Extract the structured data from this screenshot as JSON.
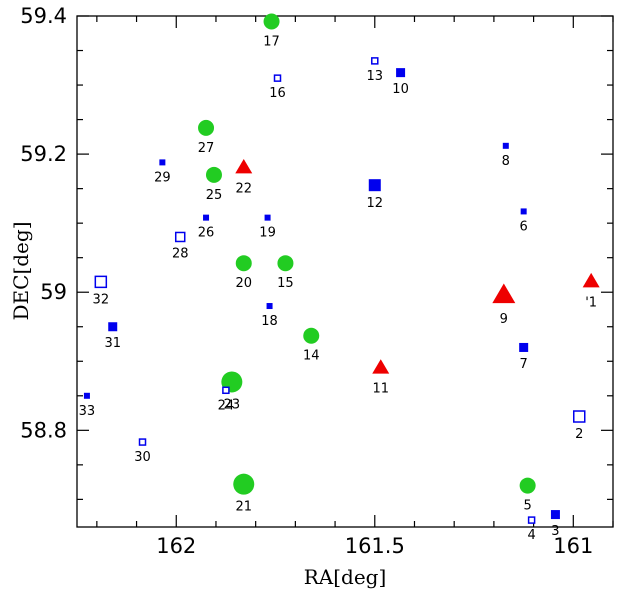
{
  "chart_data": {
    "type": "scatter",
    "title": "",
    "xlabel": "RA[deg]",
    "ylabel": "DEC[deg]",
    "xlim": [
      162.25,
      160.9
    ],
    "ylim": [
      58.66,
      59.4
    ],
    "x_reversed": true,
    "grid": false,
    "xticks": [
      {
        "value": 162,
        "label": "162"
      },
      {
        "value": 161.5,
        "label": "161.5"
      },
      {
        "value": 161,
        "label": "161"
      }
    ],
    "yticks": [
      {
        "value": 58.8,
        "label": "58.8"
      },
      {
        "value": 59,
        "label": "59"
      },
      {
        "value": 59.2,
        "label": "59.2"
      },
      {
        "value": 59.4,
        "label": "59.4"
      }
    ],
    "colors": {
      "circle": "#22cc22",
      "square": "#0000ee",
      "triangle": "#ee0000"
    },
    "points": [
      {
        "id": "1",
        "label": "'1",
        "ra": 160.955,
        "dec": 59.015,
        "shape": "triangle",
        "size": "small"
      },
      {
        "id": "2",
        "label": "2",
        "ra": 160.985,
        "dec": 58.82,
        "shape": "open-square",
        "size": "medium"
      },
      {
        "id": "3",
        "label": "3",
        "ra": 161.045,
        "dec": 58.678,
        "shape": "square",
        "size": "small"
      },
      {
        "id": "4",
        "label": "4",
        "ra": 161.105,
        "dec": 58.67,
        "shape": "open-square",
        "size": "tiny"
      },
      {
        "id": "5",
        "label": "5",
        "ra": 161.115,
        "dec": 58.72,
        "shape": "circle",
        "size": "small"
      },
      {
        "id": "6",
        "label": "6",
        "ra": 161.125,
        "dec": 59.117,
        "shape": "square",
        "size": "tiny"
      },
      {
        "id": "7",
        "label": "7",
        "ra": 161.125,
        "dec": 58.92,
        "shape": "square",
        "size": "small"
      },
      {
        "id": "8",
        "label": "8",
        "ra": 161.17,
        "dec": 59.212,
        "shape": "square",
        "size": "tiny"
      },
      {
        "id": "9",
        "label": "9",
        "ra": 161.175,
        "dec": 58.995,
        "shape": "triangle",
        "size": "large"
      },
      {
        "id": "10",
        "label": "10",
        "ra": 161.435,
        "dec": 59.318,
        "shape": "square",
        "size": "small"
      },
      {
        "id": "11",
        "label": "11",
        "ra": 161.485,
        "dec": 58.89,
        "shape": "triangle",
        "size": "small"
      },
      {
        "id": "12",
        "label": "12",
        "ra": 161.5,
        "dec": 59.155,
        "shape": "square",
        "size": "medium"
      },
      {
        "id": "13",
        "label": "13",
        "ra": 161.5,
        "dec": 59.335,
        "shape": "open-square",
        "size": "tiny"
      },
      {
        "id": "14",
        "label": "14",
        "ra": 161.66,
        "dec": 58.937,
        "shape": "circle",
        "size": "small"
      },
      {
        "id": "15",
        "label": "15",
        "ra": 161.725,
        "dec": 59.042,
        "shape": "circle",
        "size": "small"
      },
      {
        "id": "16",
        "label": "16",
        "ra": 161.745,
        "dec": 59.31,
        "shape": "open-square",
        "size": "tiny"
      },
      {
        "id": "17",
        "label": "17",
        "ra": 161.76,
        "dec": 59.392,
        "shape": "circle",
        "size": "small"
      },
      {
        "id": "18",
        "label": "18",
        "ra": 161.765,
        "dec": 58.98,
        "shape": "square",
        "size": "tiny"
      },
      {
        "id": "19",
        "label": "19",
        "ra": 161.77,
        "dec": 59.108,
        "shape": "square",
        "size": "tiny"
      },
      {
        "id": "20",
        "label": "20",
        "ra": 161.83,
        "dec": 59.042,
        "shape": "circle",
        "size": "small"
      },
      {
        "id": "21",
        "label": "21",
        "ra": 161.83,
        "dec": 58.722,
        "shape": "circle",
        "size": "large"
      },
      {
        "id": "22",
        "label": "22",
        "ra": 161.83,
        "dec": 59.18,
        "shape": "triangle",
        "size": "small"
      },
      {
        "id": "23",
        "label": "23",
        "ra": 161.86,
        "dec": 58.87,
        "shape": "circle",
        "size": "large"
      },
      {
        "id": "24",
        "label": "24",
        "ra": 161.875,
        "dec": 58.858,
        "shape": "open-square",
        "size": "tiny"
      },
      {
        "id": "25",
        "label": "25",
        "ra": 161.905,
        "dec": 59.17,
        "shape": "circle",
        "size": "small"
      },
      {
        "id": "26",
        "label": "26",
        "ra": 161.925,
        "dec": 59.108,
        "shape": "square",
        "size": "tiny"
      },
      {
        "id": "27",
        "label": "27",
        "ra": 161.925,
        "dec": 59.238,
        "shape": "circle",
        "size": "small"
      },
      {
        "id": "28",
        "label": "28",
        "ra": 161.99,
        "dec": 59.08,
        "shape": "open-square",
        "size": "small"
      },
      {
        "id": "29",
        "label": "29",
        "ra": 162.035,
        "dec": 59.188,
        "shape": "square",
        "size": "tiny"
      },
      {
        "id": "30",
        "label": "30",
        "ra": 162.085,
        "dec": 58.783,
        "shape": "open-square",
        "size": "tiny"
      },
      {
        "id": "31",
        "label": "31",
        "ra": 162.16,
        "dec": 58.95,
        "shape": "square",
        "size": "small"
      },
      {
        "id": "32",
        "label": "32",
        "ra": 162.19,
        "dec": 59.015,
        "shape": "open-square",
        "size": "medium"
      },
      {
        "id": "33",
        "label": "33",
        "ra": 162.225,
        "dec": 58.85,
        "shape": "square",
        "size": "tiny"
      }
    ]
  }
}
